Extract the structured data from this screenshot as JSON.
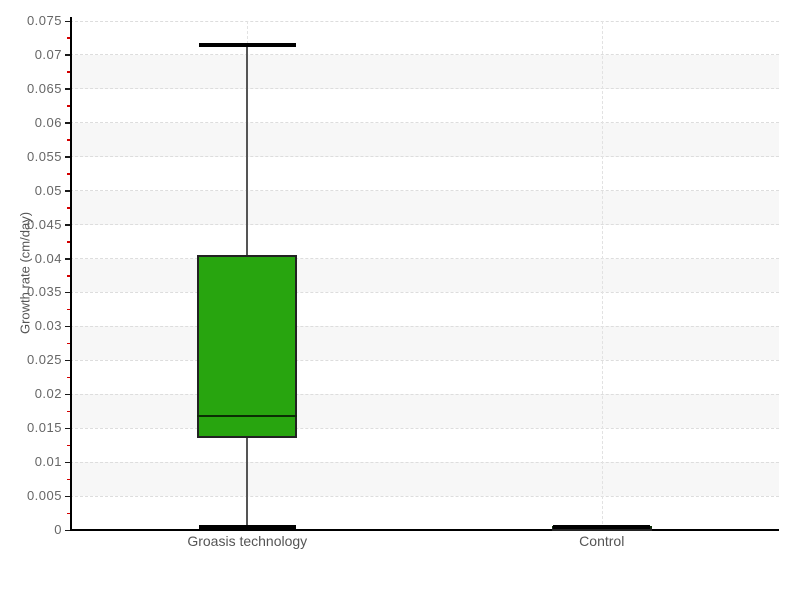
{
  "chart_data": {
    "type": "box",
    "title": "",
    "xlabel": "",
    "ylabel": "Growth rate (cm/day)",
    "categories": [
      "Groasis technology",
      "Control"
    ],
    "series": [
      {
        "name": "Groasis technology",
        "min": 0.0005,
        "q1": 0.0135,
        "median": 0.0168,
        "q3": 0.0405,
        "max": 0.0715
      },
      {
        "name": "Control",
        "min": 0.0005,
        "q1": 0.0005,
        "median": 0.0005,
        "q3": 0.0005,
        "max": 0.0005
      }
    ],
    "ylim": [
      0,
      0.075
    ],
    "y_tick_step": 0.005,
    "y_ticks": [
      "0",
      "0.005",
      "0.01",
      "0.015",
      "0.02",
      "0.025",
      "0.03",
      "0.035",
      "0.04",
      "0.045",
      "0.05",
      "0.055",
      "0.06",
      "0.065",
      "0.07",
      "0.075"
    ],
    "legend": "none",
    "grid": {
      "horizontal_dashed": true,
      "vertical_dashed_at_categories": true,
      "alternating_bands": true
    },
    "colors": {
      "box_fill": "#28a50f",
      "box_border": "#222222",
      "median": "#0b2e04",
      "whisker_stem": "#555555",
      "whisker_cap": "#000000",
      "axis": "#000000",
      "tick_label": "#666666",
      "category_label": "#555555",
      "minor_tick": "#d40000",
      "band": "#f7f7f7",
      "grid_dash": "#dddddd",
      "background": "#ffffff"
    }
  }
}
